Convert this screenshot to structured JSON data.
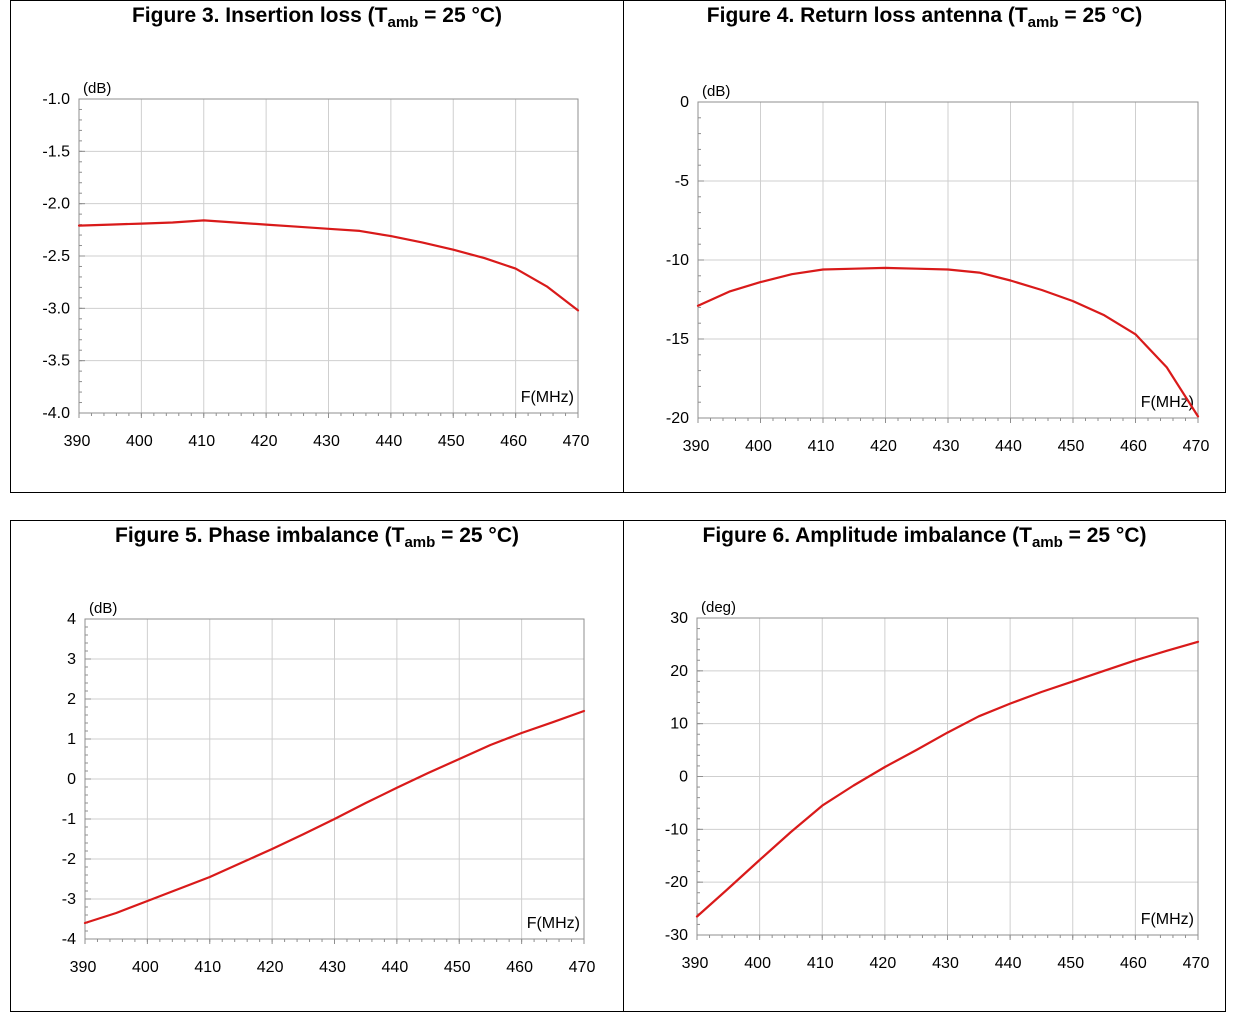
{
  "colors": {
    "curve": "#d91a1a",
    "grid": "#cfcfcf",
    "frame": "#8f8f8f"
  },
  "chart_data": [
    {
      "type": "line",
      "title_main": "Figure 3. Insertion loss (T",
      "title_sub": "amb",
      "title_tail": " = 25 °C)",
      "unit_label": "(dB)",
      "xlabel": "F(MHz)",
      "xlim": [
        390,
        470
      ],
      "ylim": [
        -4.0,
        -1.0
      ],
      "x_ticks": [
        "390",
        "400",
        "410",
        "420",
        "430",
        "440",
        "450",
        "460",
        "470"
      ],
      "y_ticks": [
        "-1.0",
        "-1.5",
        "-2.0",
        "-2.5",
        "-3.0",
        "-3.5",
        "-4.0"
      ],
      "grid": true,
      "series": [
        {
          "x": [
            390,
            395,
            400,
            405,
            410,
            415,
            420,
            425,
            430,
            435,
            440,
            445,
            450,
            455,
            460,
            465,
            470
          ],
          "y": [
            -2.21,
            -2.2,
            -2.19,
            -2.18,
            -2.16,
            -2.18,
            -2.2,
            -2.22,
            -2.24,
            -2.26,
            -2.31,
            -2.37,
            -2.44,
            -2.52,
            -2.62,
            -2.79,
            -3.02
          ]
        }
      ]
    },
    {
      "type": "line",
      "title_main": "Figure 4. Return loss antenna (T",
      "title_sub": "amb",
      "title_tail": " = 25 °C)",
      "unit_label": "(dB)",
      "xlabel": "F(MHz)",
      "xlim": [
        390,
        470
      ],
      "ylim": [
        -20,
        0
      ],
      "x_ticks": [
        "390",
        "400",
        "410",
        "420",
        "430",
        "440",
        "450",
        "460",
        "470"
      ],
      "y_ticks": [
        "0",
        "-5",
        "-10",
        "-15",
        "-20"
      ],
      "grid": true,
      "series": [
        {
          "x": [
            390,
            395,
            400,
            405,
            410,
            415,
            420,
            425,
            430,
            435,
            440,
            445,
            450,
            455,
            460,
            465,
            470
          ],
          "y": [
            -12.9,
            -12.0,
            -11.4,
            -10.9,
            -10.6,
            -10.55,
            -10.5,
            -10.55,
            -10.6,
            -10.8,
            -11.3,
            -11.9,
            -12.6,
            -13.5,
            -14.7,
            -16.8,
            -19.9
          ]
        }
      ]
    },
    {
      "type": "line",
      "title_main": "Figure 5. Phase imbalance (T",
      "title_sub": "amb",
      "title_tail": " = 25 °C)",
      "unit_label": "(dB)",
      "xlabel": "F(MHz)",
      "xlim": [
        390,
        470
      ],
      "ylim": [
        -4,
        4
      ],
      "x_ticks": [
        "390",
        "400",
        "410",
        "420",
        "430",
        "440",
        "450",
        "460",
        "470"
      ],
      "y_ticks": [
        "4",
        "3",
        "2",
        "1",
        "0",
        "-1",
        "-2",
        "-3",
        "-4"
      ],
      "grid": true,
      "series": [
        {
          "x": [
            390,
            395,
            400,
            405,
            410,
            415,
            420,
            425,
            430,
            435,
            440,
            445,
            450,
            455,
            460,
            465,
            470
          ],
          "y": [
            -3.6,
            -3.35,
            -3.05,
            -2.75,
            -2.45,
            -2.1,
            -1.75,
            -1.38,
            -1.0,
            -0.6,
            -0.22,
            0.15,
            0.5,
            0.85,
            1.15,
            1.42,
            1.7
          ]
        }
      ]
    },
    {
      "type": "line",
      "title_main": "Figure 6. Amplitude imbalance (T",
      "title_sub": "amb",
      "title_tail": " = 25 °C)",
      "unit_label": "(deg)",
      "xlabel": "F(MHz)",
      "xlim": [
        390,
        470
      ],
      "ylim": [
        -30,
        30
      ],
      "x_ticks": [
        "390",
        "400",
        "410",
        "420",
        "430",
        "440",
        "450",
        "460",
        "470"
      ],
      "y_ticks": [
        "30",
        "20",
        "10",
        "0",
        "-10",
        "-20",
        "-30"
      ],
      "grid": true,
      "series": [
        {
          "x": [
            390,
            395,
            400,
            405,
            410,
            415,
            420,
            425,
            430,
            435,
            440,
            445,
            450,
            455,
            460,
            465,
            470
          ],
          "y": [
            -26.5,
            -21.2,
            -15.8,
            -10.5,
            -5.5,
            -1.7,
            1.8,
            5.0,
            8.3,
            11.4,
            13.8,
            16.0,
            18.0,
            20.0,
            22.0,
            23.8,
            25.5
          ]
        }
      ]
    }
  ]
}
